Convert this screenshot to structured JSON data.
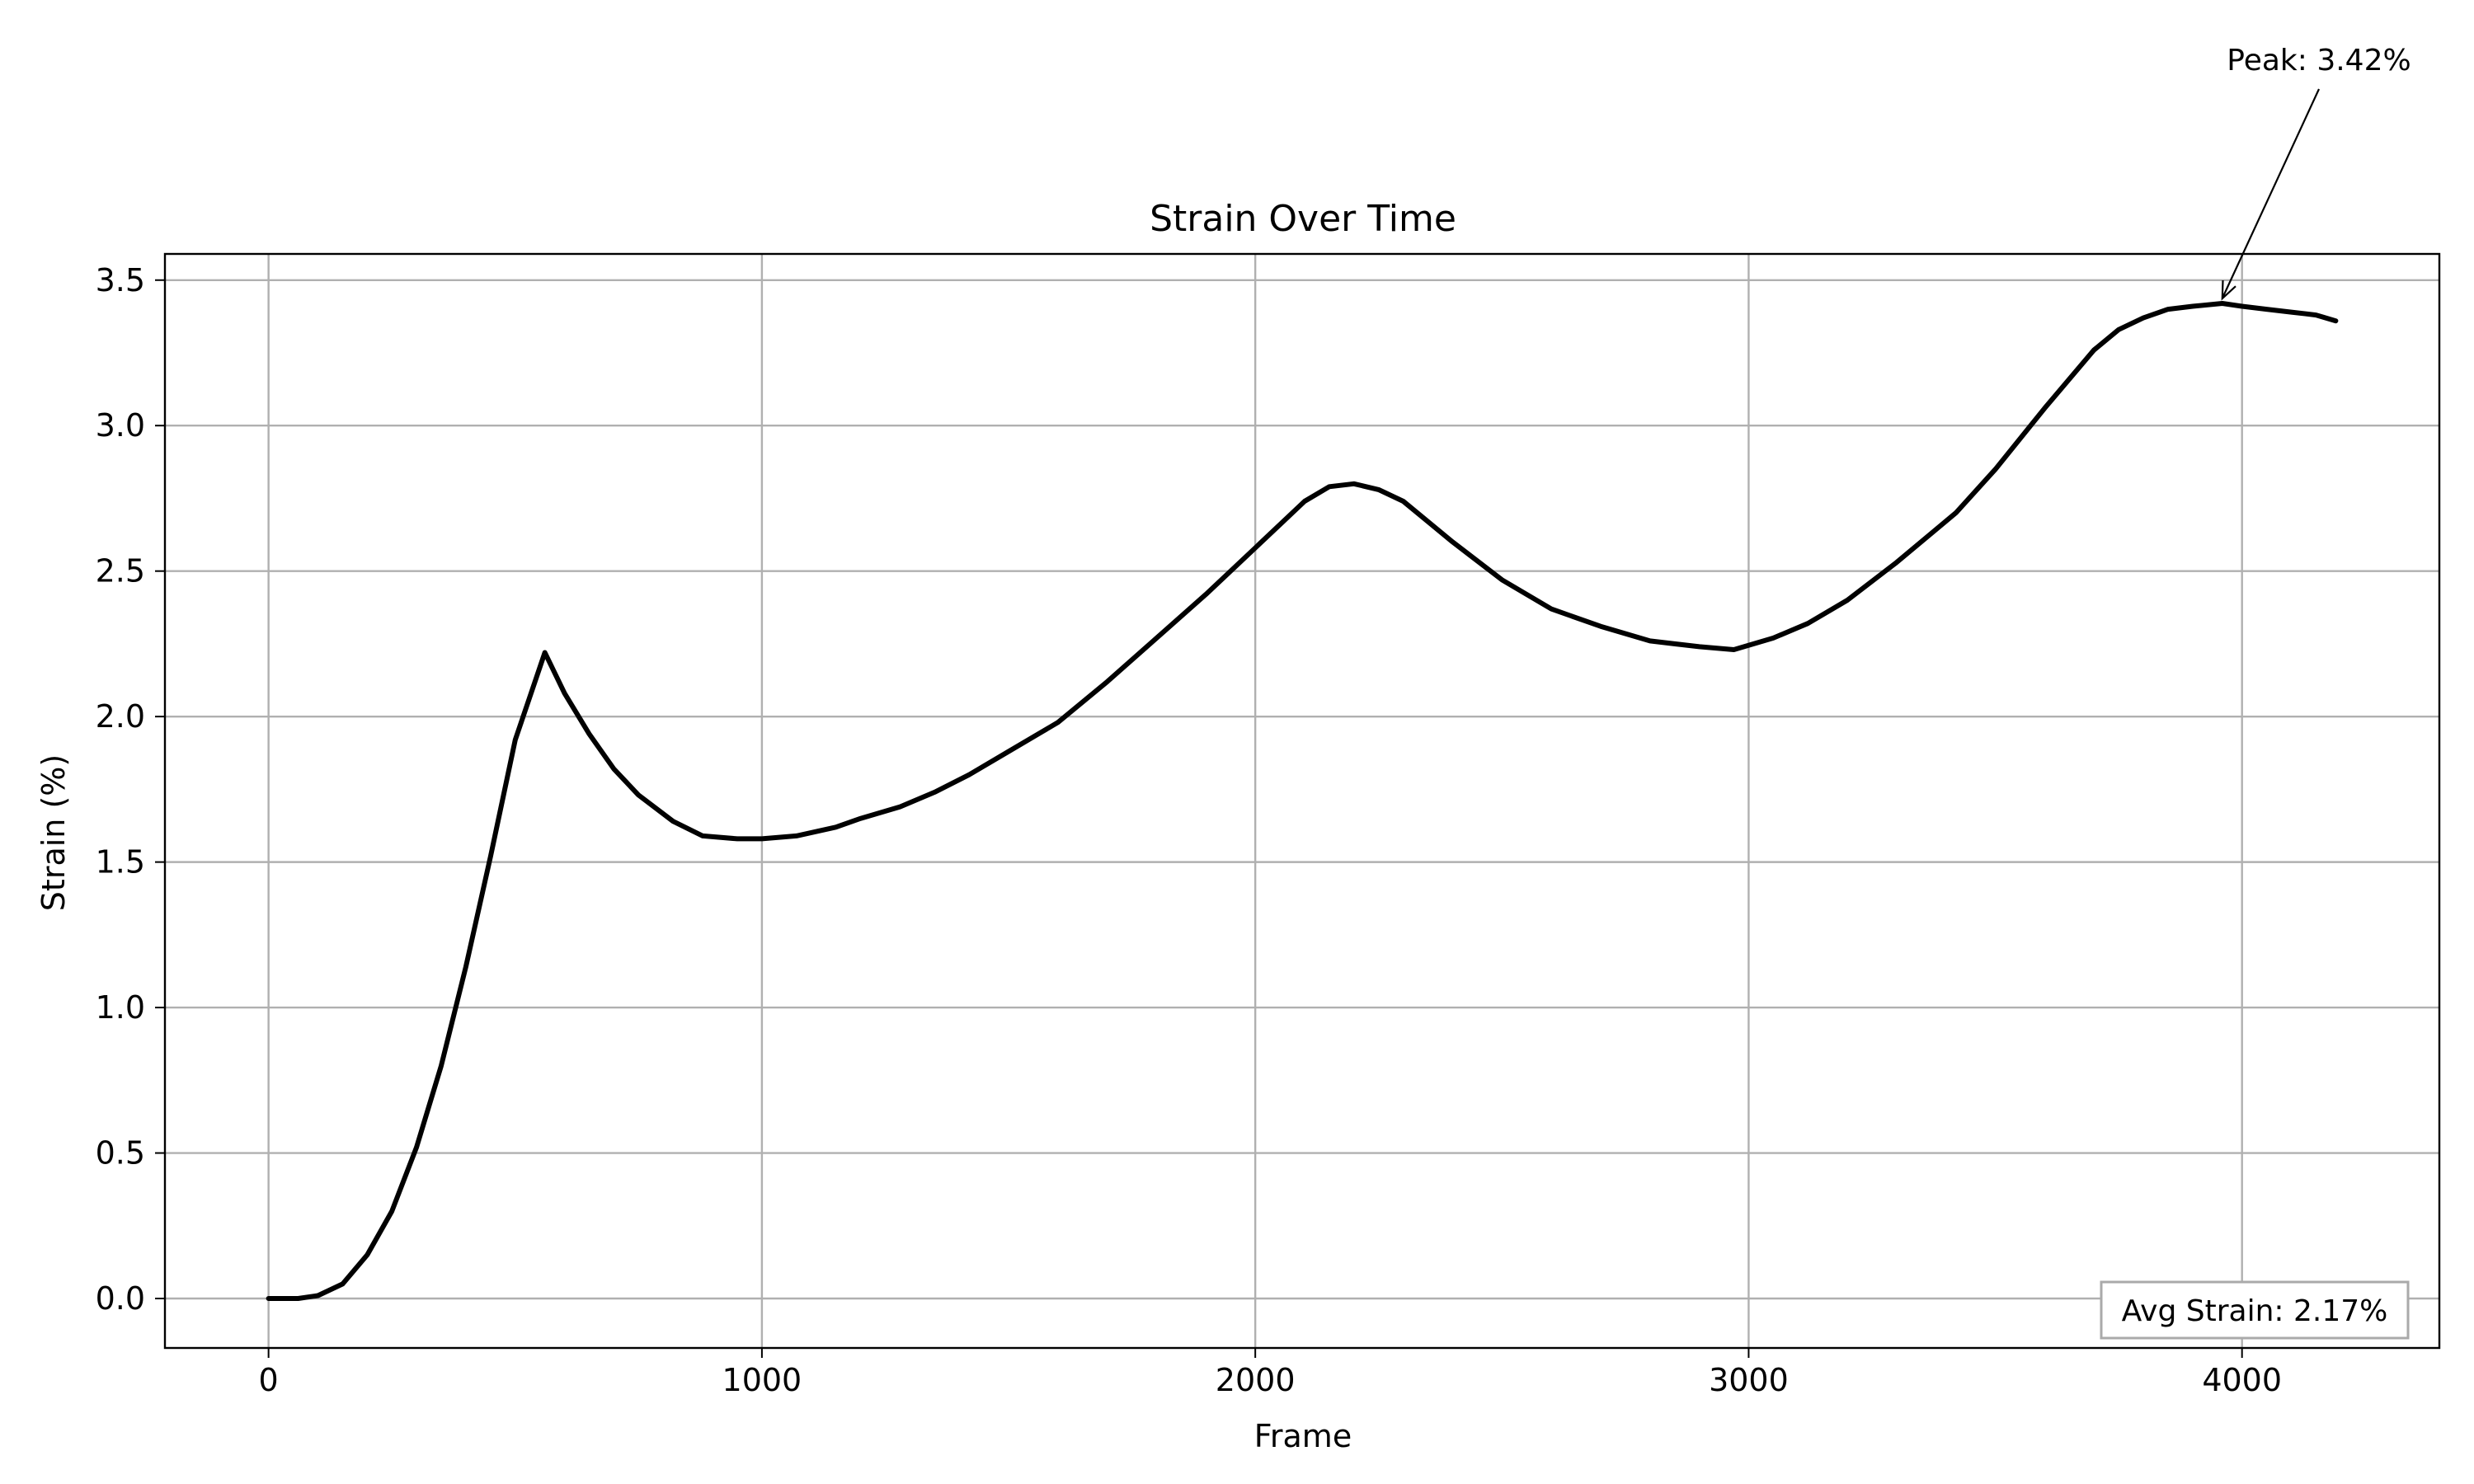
{
  "chart_data": {
    "type": "line",
    "title": "Strain Over Time",
    "xlabel": "Frame",
    "ylabel": "Strain (%)",
    "xlim": [
      -210,
      4400
    ],
    "ylim": [
      -0.17,
      3.59
    ],
    "xticks": [
      0,
      1000,
      2000,
      3000,
      4000
    ],
    "yticks": [
      0.0,
      0.5,
      1.0,
      1.5,
      2.0,
      2.5,
      3.0,
      3.5
    ],
    "ytick_decimals": 1,
    "grid": true,
    "line_color": "#000000",
    "series": [
      {
        "x": [
          0,
          60,
          100,
          150,
          200,
          250,
          300,
          350,
          400,
          450,
          500,
          560,
          600,
          650,
          700,
          750,
          820,
          880,
          950,
          1000,
          1070,
          1150,
          1200,
          1280,
          1350,
          1420,
          1500,
          1600,
          1700,
          1800,
          1900,
          2000,
          2100,
          2150,
          2200,
          2250,
          2300,
          2400,
          2500,
          2600,
          2700,
          2800,
          2900,
          2970,
          3050,
          3120,
          3200,
          3300,
          3420,
          3500,
          3600,
          3700,
          3750,
          3800,
          3850,
          3900,
          3960,
          4000,
          4050,
          4100,
          4150,
          4190
        ],
        "y": [
          0.0,
          0.0,
          0.01,
          0.05,
          0.15,
          0.3,
          0.52,
          0.8,
          1.14,
          1.52,
          1.92,
          2.22,
          2.08,
          1.94,
          1.82,
          1.73,
          1.64,
          1.59,
          1.58,
          1.58,
          1.59,
          1.62,
          1.65,
          1.69,
          1.74,
          1.8,
          1.88,
          1.98,
          2.12,
          2.27,
          2.42,
          2.58,
          2.74,
          2.79,
          2.8,
          2.78,
          2.74,
          2.6,
          2.47,
          2.37,
          2.31,
          2.26,
          2.24,
          2.23,
          2.27,
          2.32,
          2.4,
          2.53,
          2.7,
          2.85,
          3.06,
          3.26,
          3.33,
          3.37,
          3.4,
          3.41,
          3.42,
          3.41,
          3.4,
          3.39,
          3.38,
          3.36
        ]
      }
    ],
    "annotations": {
      "peak_label": "Peak: 3.42%",
      "peak_point": {
        "x": 3960,
        "y": 3.42
      },
      "avg_box_label": "Avg Strain: 2.17%",
      "avg_box_placement": "bottom-right"
    }
  }
}
